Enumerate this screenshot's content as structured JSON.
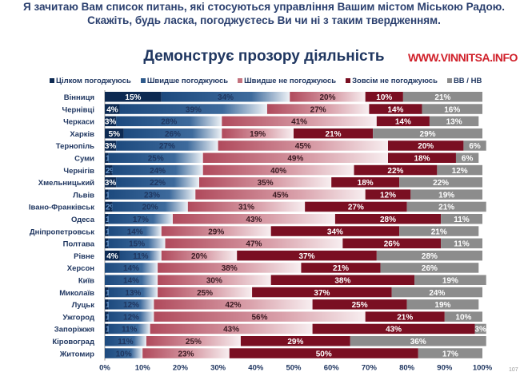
{
  "question": "Я зачитаю Вам список питань, які стосуються управління Вашим містом Міською Радою. Скажіть, будь ласка, погоджуєтесь Ви чи ні з таким твердженням.",
  "watermark": "WWW.VINNITSA.INFO",
  "page_number": "107",
  "chart_data": {
    "type": "bar",
    "orientation": "horizontal-stacked-100",
    "title": "Демонструє прозору діяльність",
    "xlim": [
      0,
      100
    ],
    "x_ticks": [
      "0%",
      "10%",
      "20%",
      "30%",
      "40%",
      "50%",
      "60%",
      "70%",
      "80%",
      "90%",
      "100%"
    ],
    "legend_position": "top",
    "categories": [
      "Вінниця",
      "Чернівці",
      "Черкаси",
      "Харків",
      "Тернопіль",
      "Суми",
      "Чернігів",
      "Хмельницький",
      "Львів",
      "Івано-Франківськ",
      "Одеса",
      "Дніпропетровськ",
      "Полтава",
      "Рівне",
      "Херсон",
      "Київ",
      "Миколаїв",
      "Луцьк",
      "Ужгород",
      "Запоріжжя",
      "Кіровоград",
      "Житомир"
    ],
    "series": [
      {
        "name": "Цілком погоджуюсь",
        "color": "#0d2a52",
        "values": [
          15,
          4,
          3,
          5,
          3,
          1,
          2,
          3,
          1,
          2,
          1,
          1,
          1,
          4,
          0,
          0,
          1,
          1,
          1,
          1,
          0,
          0
        ]
      },
      {
        "name": "Швидше погоджуюсь",
        "color": "#2f5b8c",
        "values": [
          34,
          39,
          28,
          26,
          27,
          25,
          24,
          22,
          23,
          20,
          17,
          14,
          15,
          11,
          14,
          14,
          13,
          12,
          12,
          11,
          11,
          10
        ]
      },
      {
        "name": "Швидше не погоджуюсь",
        "color": "#c4737f",
        "values": [
          20,
          27,
          41,
          19,
          45,
          49,
          40,
          35,
          45,
          31,
          43,
          29,
          47,
          20,
          38,
          30,
          25,
          42,
          56,
          43,
          25,
          23
        ]
      },
      {
        "name": "Зовсім не погоджуюсь",
        "color": "#7a0f22",
        "values": [
          10,
          14,
          14,
          21,
          20,
          18,
          22,
          18,
          12,
          27,
          28,
          34,
          26,
          37,
          21,
          38,
          37,
          25,
          21,
          43,
          29,
          50
        ]
      },
      {
        "name": "ВВ / НВ",
        "color": "#8c8c8c",
        "values": [
          21,
          16,
          13,
          29,
          6,
          6,
          12,
          22,
          19,
          21,
          11,
          21,
          11,
          28,
          26,
          19,
          24,
          19,
          10,
          3,
          36,
          17
        ]
      }
    ]
  }
}
